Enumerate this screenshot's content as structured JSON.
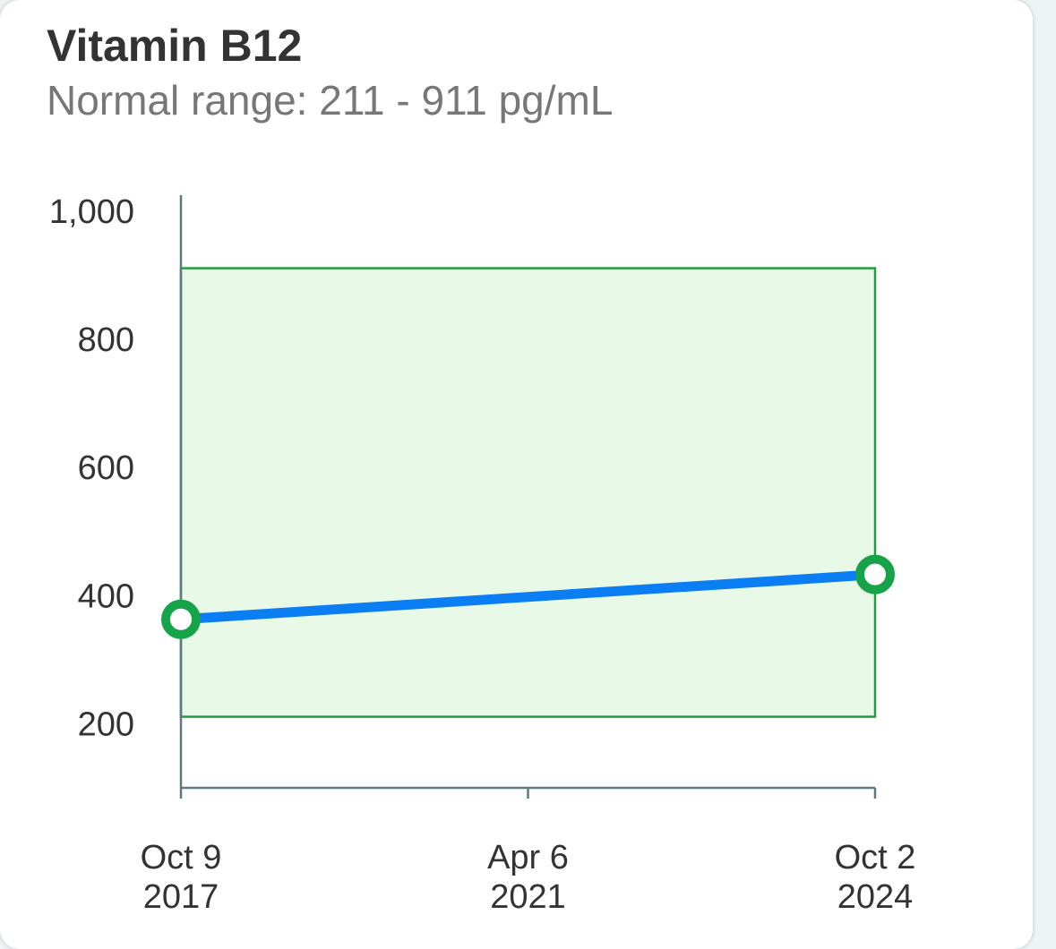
{
  "card": {
    "title": "Vitamin B12",
    "subtitle": "Normal range: 211 - 911 pg/mL"
  },
  "chart_data": {
    "type": "line",
    "title": "Vitamin B12",
    "subtitle": "Normal range: 211 - 911 pg/mL",
    "xlabel": "",
    "ylabel": "",
    "unit": "pg/mL",
    "x_tick_labels": [
      {
        "date": "2017-10-09",
        "line1": "Oct 9",
        "line2": "2017"
      },
      {
        "date": "2021-04-06",
        "line1": "Apr 6",
        "line2": "2021"
      },
      {
        "date": "2024-10-02",
        "line1": "Oct 2",
        "line2": "2024"
      }
    ],
    "y_tick_labels": [
      "200",
      "400",
      "600",
      "800",
      "1,000"
    ],
    "y_tick_values": [
      200,
      400,
      600,
      800,
      1000
    ],
    "ylim": [
      100,
      1025
    ],
    "xlim": [
      "2017-10-09",
      "2024-10-02"
    ],
    "normal_range": {
      "low": 211,
      "high": 911
    },
    "series": [
      {
        "points": [
          {
            "x": "2017-10-09",
            "y": 363
          },
          {
            "x": "2024-10-02",
            "y": 433
          }
        ]
      }
    ],
    "grid": false,
    "colors": {
      "line": "#0a7ef2",
      "marker": "#17a34a",
      "range_fill": "#e8f9e8",
      "range_border": "#1f9d3c",
      "axis": "#5f7a7f"
    }
  }
}
